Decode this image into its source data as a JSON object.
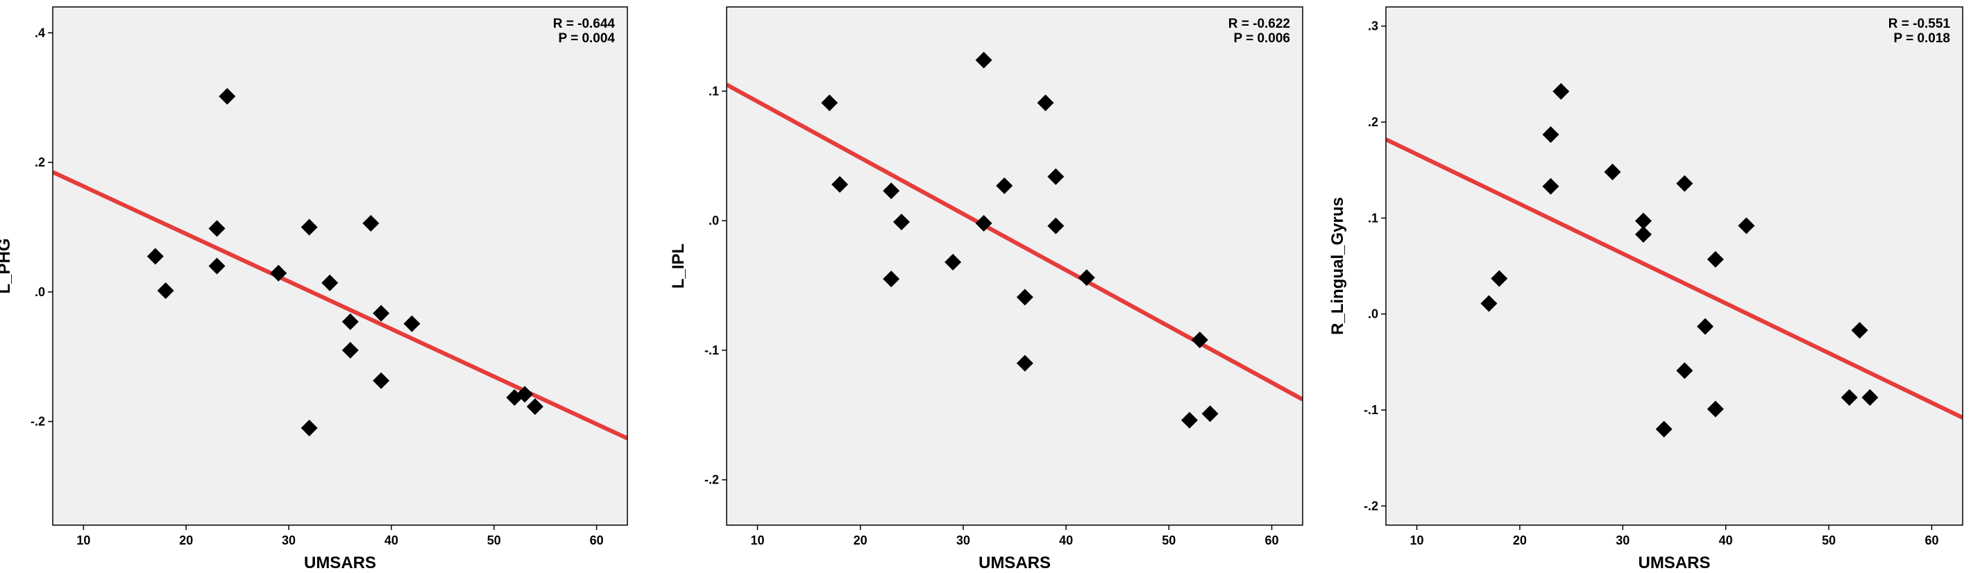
{
  "chart_data": [
    {
      "type": "scatter",
      "title": "",
      "xlabel": "UMSARS",
      "ylabel": "L_PHG",
      "xlim": [
        7,
        63
      ],
      "ylim": [
        -0.36,
        0.44
      ],
      "x_ticks": [
        10,
        20,
        30,
        40,
        50,
        60
      ],
      "x_tick_labels": [
        "10",
        "20",
        "30",
        "40",
        "50",
        "60"
      ],
      "y_ticks": [
        -0.2,
        0.0,
        0.2,
        0.4
      ],
      "y_tick_labels": [
        "-.2",
        ".0",
        ".2",
        ".4"
      ],
      "annotation": [
        "R = -0.644",
        "P = 0.004"
      ],
      "fit_line": {
        "x": [
          7,
          63
        ],
        "y": [
          0.185,
          -0.226
        ]
      },
      "marker_color": "#000000",
      "line_color": "#e63c3c",
      "background": "#f0f0f0",
      "grid": false,
      "points": [
        {
          "x": 17,
          "y": 0.055
        },
        {
          "x": 18,
          "y": 0.002
        },
        {
          "x": 23,
          "y": 0.098
        },
        {
          "x": 23,
          "y": 0.04
        },
        {
          "x": 24,
          "y": 0.302
        },
        {
          "x": 29,
          "y": 0.029
        },
        {
          "x": 32,
          "y": 0.1
        },
        {
          "x": 32,
          "y": -0.21
        },
        {
          "x": 34,
          "y": 0.014
        },
        {
          "x": 36,
          "y": -0.046
        },
        {
          "x": 36,
          "y": -0.09
        },
        {
          "x": 38,
          "y": 0.106
        },
        {
          "x": 39,
          "y": -0.033
        },
        {
          "x": 39,
          "y": -0.137
        },
        {
          "x": 42,
          "y": -0.049
        },
        {
          "x": 52,
          "y": -0.163
        },
        {
          "x": 53,
          "y": -0.158
        },
        {
          "x": 54,
          "y": -0.177
        }
      ]
    },
    {
      "type": "scatter",
      "title": "",
      "xlabel": "UMSARS",
      "ylabel": "L_IPL",
      "xlim": [
        7,
        63
      ],
      "ylim": [
        -0.235,
        0.165
      ],
      "x_ticks": [
        10,
        20,
        30,
        40,
        50,
        60
      ],
      "x_tick_labels": [
        "10",
        "20",
        "30",
        "40",
        "50",
        "60"
      ],
      "y_ticks": [
        -0.2,
        -0.1,
        0.0,
        0.1
      ],
      "y_tick_labels": [
        "-.2",
        "-.1",
        ".0",
        ".1"
      ],
      "annotation": [
        "R = -0.622",
        "P = 0.006"
      ],
      "fit_line": {
        "x": [
          7,
          63
        ],
        "y": [
          0.105,
          -0.138
        ]
      },
      "marker_color": "#000000",
      "line_color": "#e63c3c",
      "background": "#f0f0f0",
      "grid": false,
      "points": [
        {
          "x": 17,
          "y": 0.091
        },
        {
          "x": 18,
          "y": 0.028
        },
        {
          "x": 23,
          "y": 0.023
        },
        {
          "x": 23,
          "y": -0.045
        },
        {
          "x": 24,
          "y": -0.001
        },
        {
          "x": 29,
          "y": -0.032
        },
        {
          "x": 32,
          "y": 0.124
        },
        {
          "x": 32,
          "y": -0.002
        },
        {
          "x": 34,
          "y": 0.027
        },
        {
          "x": 36,
          "y": -0.059
        },
        {
          "x": 36,
          "y": -0.11
        },
        {
          "x": 38,
          "y": 0.091
        },
        {
          "x": 39,
          "y": 0.034
        },
        {
          "x": 39,
          "y": -0.004
        },
        {
          "x": 42,
          "y": -0.044
        },
        {
          "x": 52,
          "y": -0.154
        },
        {
          "x": 53,
          "y": -0.092
        },
        {
          "x": 54,
          "y": -0.149
        }
      ]
    },
    {
      "type": "scatter",
      "title": "",
      "xlabel": "UMSARS",
      "ylabel": "R_Lingual_Gyrus",
      "xlim": [
        7,
        63
      ],
      "ylim": [
        -0.22,
        0.32
      ],
      "x_ticks": [
        10,
        20,
        30,
        40,
        50,
        60
      ],
      "x_tick_labels": [
        "10",
        "20",
        "30",
        "40",
        "50",
        "60"
      ],
      "y_ticks": [
        -0.2,
        -0.1,
        0.0,
        0.1,
        0.2,
        0.3
      ],
      "y_tick_labels": [
        "-.2",
        "-.1",
        ".0",
        ".1",
        ".2",
        ".3"
      ],
      "annotation": [
        "R = -0.551",
        "P = 0.018"
      ],
      "fit_line": {
        "x": [
          7,
          63
        ],
        "y": [
          0.182,
          -0.108
        ]
      },
      "marker_color": "#000000",
      "line_color": "#e63c3c",
      "background": "#f0f0f0",
      "grid": false,
      "points": [
        {
          "x": 17,
          "y": 0.011
        },
        {
          "x": 18,
          "y": 0.037
        },
        {
          "x": 23,
          "y": 0.187
        },
        {
          "x": 23,
          "y": 0.133
        },
        {
          "x": 24,
          "y": 0.232
        },
        {
          "x": 29,
          "y": 0.148
        },
        {
          "x": 32,
          "y": 0.097
        },
        {
          "x": 32,
          "y": 0.083
        },
        {
          "x": 34,
          "y": -0.12
        },
        {
          "x": 36,
          "y": 0.136
        },
        {
          "x": 36,
          "y": -0.059
        },
        {
          "x": 38,
          "y": -0.013
        },
        {
          "x": 39,
          "y": 0.057
        },
        {
          "x": 39,
          "y": -0.099
        },
        {
          "x": 42,
          "y": 0.092
        },
        {
          "x": 52,
          "y": -0.087
        },
        {
          "x": 53,
          "y": -0.017
        },
        {
          "x": 54,
          "y": -0.087
        }
      ]
    }
  ]
}
